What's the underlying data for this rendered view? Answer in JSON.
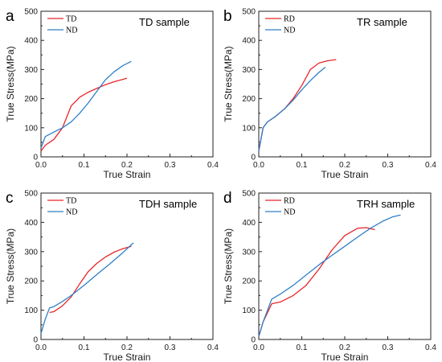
{
  "chart_data": [
    {
      "type": "line",
      "panel_letter": "a",
      "title": "TD sample",
      "xlabel": "True Strain",
      "ylabel": "True Stress(MPa)",
      "xlim": [
        0,
        0.4
      ],
      "ylim": [
        0,
        500
      ],
      "xticks": [
        "0.0",
        "0.1",
        "0.2",
        "0.3",
        "0.4"
      ],
      "yticks": [
        "0",
        "100",
        "200",
        "300",
        "400",
        "500"
      ],
      "grid": false,
      "legend_position": "top-left",
      "series": [
        {
          "name": "TD",
          "color": "#e8262b",
          "x": [
            0,
            0.01,
            0.03,
            0.05,
            0.07,
            0.09,
            0.11,
            0.13,
            0.15,
            0.17,
            0.19,
            0.2
          ],
          "y": [
            20,
            40,
            60,
            100,
            175,
            205,
            222,
            235,
            248,
            258,
            266,
            270
          ]
        },
        {
          "name": "ND",
          "color": "#2e7fc8",
          "x": [
            0,
            0.01,
            0.03,
            0.05,
            0.07,
            0.09,
            0.11,
            0.13,
            0.15,
            0.17,
            0.19,
            0.21
          ],
          "y": [
            30,
            70,
            85,
            100,
            120,
            150,
            185,
            225,
            265,
            292,
            313,
            328
          ]
        }
      ]
    },
    {
      "type": "line",
      "panel_letter": "b",
      "title": "TR sample",
      "xlabel": "True Strain",
      "ylabel": "True Stress(MPa)",
      "xlim": [
        0,
        0.4
      ],
      "ylim": [
        0,
        500
      ],
      "xticks": [
        "0.0",
        "0.1",
        "0.2",
        "0.3",
        "0.4"
      ],
      "yticks": [
        "0",
        "100",
        "200",
        "300",
        "400",
        "500"
      ],
      "grid": false,
      "legend_position": "top-left",
      "series": [
        {
          "name": "RD",
          "color": "#e8262b",
          "x": [
            0,
            0.01,
            0.02,
            0.04,
            0.06,
            0.08,
            0.1,
            0.12,
            0.14,
            0.16,
            0.18
          ],
          "y": [
            20,
            100,
            120,
            140,
            165,
            200,
            245,
            300,
            322,
            330,
            334
          ]
        },
        {
          "name": "ND",
          "color": "#2e7fc8",
          "x": [
            0,
            0.01,
            0.02,
            0.04,
            0.06,
            0.08,
            0.1,
            0.12,
            0.14,
            0.155
          ],
          "y": [
            20,
            100,
            120,
            140,
            165,
            195,
            230,
            262,
            290,
            308
          ]
        }
      ]
    },
    {
      "type": "line",
      "panel_letter": "c",
      "title": "TDH sample",
      "xlabel": "True Strain",
      "ylabel": "True Stress(MPa)",
      "xlim": [
        0,
        0.4
      ],
      "ylim": [
        0,
        500
      ],
      "xticks": [
        "0.0",
        "0.1",
        "0.2",
        "0.3",
        "0.4"
      ],
      "yticks": [
        "0",
        "100",
        "200",
        "300",
        "400",
        "500"
      ],
      "grid": false,
      "legend_position": "top-left",
      "series": [
        {
          "name": "TD",
          "color": "#e8262b",
          "x": [
            0.02,
            0.03,
            0.05,
            0.07,
            0.09,
            0.11,
            0.13,
            0.15,
            0.17,
            0.19,
            0.21
          ],
          "y": [
            92,
            95,
            115,
            145,
            190,
            232,
            260,
            282,
            298,
            310,
            318
          ]
        },
        {
          "name": "ND",
          "color": "#2e7fc8",
          "x": [
            0,
            0.005,
            0.01,
            0.02,
            0.03,
            0.05,
            0.07,
            0.1,
            0.13,
            0.16,
            0.19,
            0.215
          ],
          "y": [
            20,
            45,
            70,
            108,
            112,
            130,
            150,
            185,
            222,
            258,
            296,
            330
          ]
        }
      ]
    },
    {
      "type": "line",
      "panel_letter": "d",
      "title": "TRH sample",
      "xlabel": "True Strain",
      "ylabel": "True Stress(MPa)",
      "xlim": [
        0,
        0.4
      ],
      "ylim": [
        0,
        500
      ],
      "xticks": [
        "0.0",
        "0.1",
        "0.2",
        "0.3",
        "0.4"
      ],
      "yticks": [
        "0",
        "100",
        "200",
        "300",
        "400",
        "500"
      ],
      "grid": false,
      "legend_position": "top-left",
      "series": [
        {
          "name": "RD",
          "color": "#e8262b",
          "x": [
            0,
            0.01,
            0.03,
            0.05,
            0.08,
            0.11,
            0.14,
            0.17,
            0.2,
            0.23,
            0.25,
            0.27
          ],
          "y": [
            10,
            60,
            122,
            128,
            150,
            185,
            240,
            305,
            355,
            380,
            382,
            375
          ]
        },
        {
          "name": "ND",
          "color": "#2e7fc8",
          "x": [
            0,
            0.01,
            0.03,
            0.05,
            0.08,
            0.11,
            0.14,
            0.17,
            0.2,
            0.23,
            0.26,
            0.29,
            0.31,
            0.33
          ],
          "y": [
            10,
            60,
            138,
            155,
            185,
            220,
            255,
            287,
            318,
            350,
            380,
            405,
            418,
            425
          ]
        }
      ]
    }
  ]
}
